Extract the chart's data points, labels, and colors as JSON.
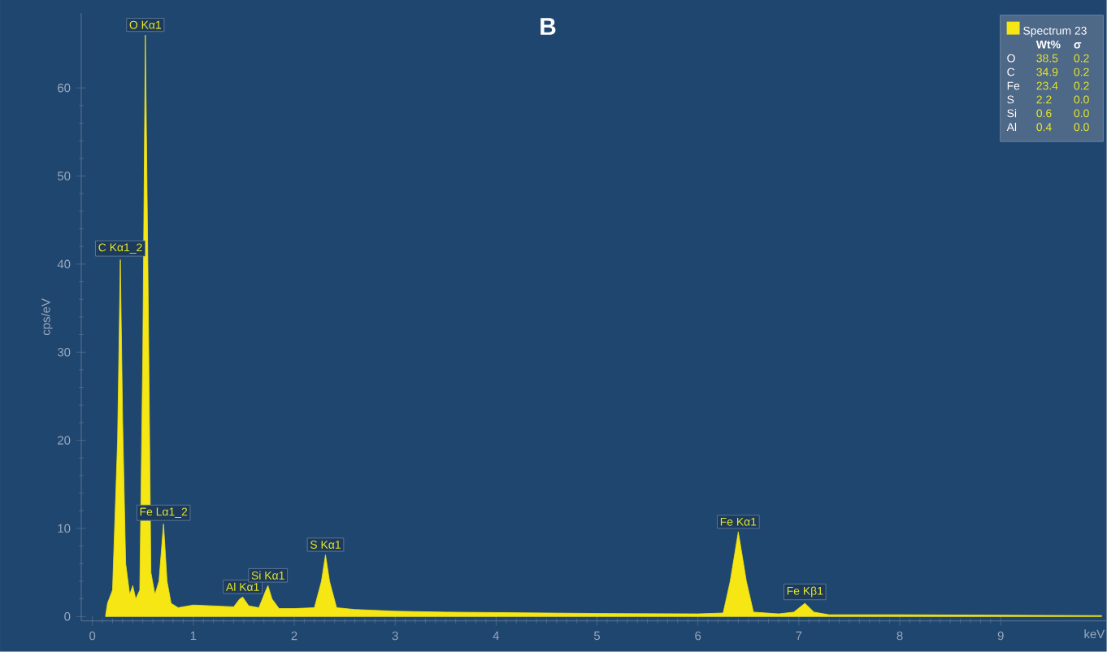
{
  "chart_data": {
    "type": "area",
    "title": "B",
    "xlabel": "keV",
    "ylabel": "cps/eV",
    "xlim": [
      -0.11,
      10.05
    ],
    "ylim": [
      -0.5,
      68.5
    ],
    "xticks": [
      0,
      1,
      2,
      3,
      4,
      5,
      6,
      7,
      8,
      9
    ],
    "yticks": [
      0,
      10,
      20,
      30,
      40,
      50,
      60
    ],
    "legend": "top right",
    "series": [
      {
        "name": "Spectrum 23",
        "color": "#f5e614",
        "x": [
          0.13,
          0.15,
          0.2,
          0.25,
          0.277,
          0.3,
          0.33,
          0.37,
          0.4,
          0.43,
          0.47,
          0.5,
          0.525,
          0.55,
          0.58,
          0.62,
          0.66,
          0.705,
          0.74,
          0.78,
          0.85,
          1.0,
          1.2,
          1.4,
          1.46,
          1.49,
          1.55,
          1.65,
          1.72,
          1.74,
          1.78,
          1.85,
          2.0,
          2.2,
          2.27,
          2.31,
          2.35,
          2.42,
          2.6,
          3.0,
          3.5,
          4.0,
          5.0,
          6.0,
          6.25,
          6.32,
          6.4,
          6.48,
          6.55,
          6.8,
          6.95,
          7.06,
          7.15,
          7.3,
          8.0,
          9.0,
          10.0
        ],
        "values": [
          0,
          1.5,
          3,
          20,
          40.5,
          22,
          6,
          2.5,
          3.5,
          2,
          3,
          30,
          66,
          40,
          5,
          2.5,
          4,
          10.5,
          4,
          1.5,
          1.0,
          1.3,
          1.2,
          1.1,
          2,
          2.2,
          1.2,
          1.0,
          3,
          3.5,
          2,
          0.9,
          0.9,
          1.0,
          4,
          7,
          4,
          1.0,
          0.8,
          0.6,
          0.5,
          0.45,
          0.35,
          0.3,
          0.4,
          4,
          9.6,
          4,
          0.5,
          0.3,
          0.5,
          1.5,
          0.5,
          0.2,
          0.2,
          0.15,
          0.1
        ]
      }
    ],
    "annotations": [
      {
        "text": "C Kα1_2",
        "x": 0.277,
        "y": 40.5
      },
      {
        "text": "O Kα1",
        "x": 0.525,
        "y": 66
      },
      {
        "text": "Fe Lα1_2",
        "x": 0.705,
        "y": 10.5
      },
      {
        "text": "Al Kα1",
        "x": 1.49,
        "y": 2.2
      },
      {
        "text": "Si Kα1",
        "x": 1.74,
        "y": 3.5
      },
      {
        "text": "S Kα1",
        "x": 2.31,
        "y": 7
      },
      {
        "text": "Fe Kα1",
        "x": 6.4,
        "y": 9.6
      },
      {
        "text": "Fe Kβ1",
        "x": 7.06,
        "y": 1.5
      },
      "Wt%",
      "σ",
      "O",
      "38.5",
      "0.2",
      "C",
      "34.9",
      "0.2",
      "Fe",
      "23.4",
      "0.2",
      "S",
      "2.2",
      "0.0",
      "Si",
      "0.6",
      "0.0",
      "Al",
      "0.4",
      "0.0"
    ]
  }
}
